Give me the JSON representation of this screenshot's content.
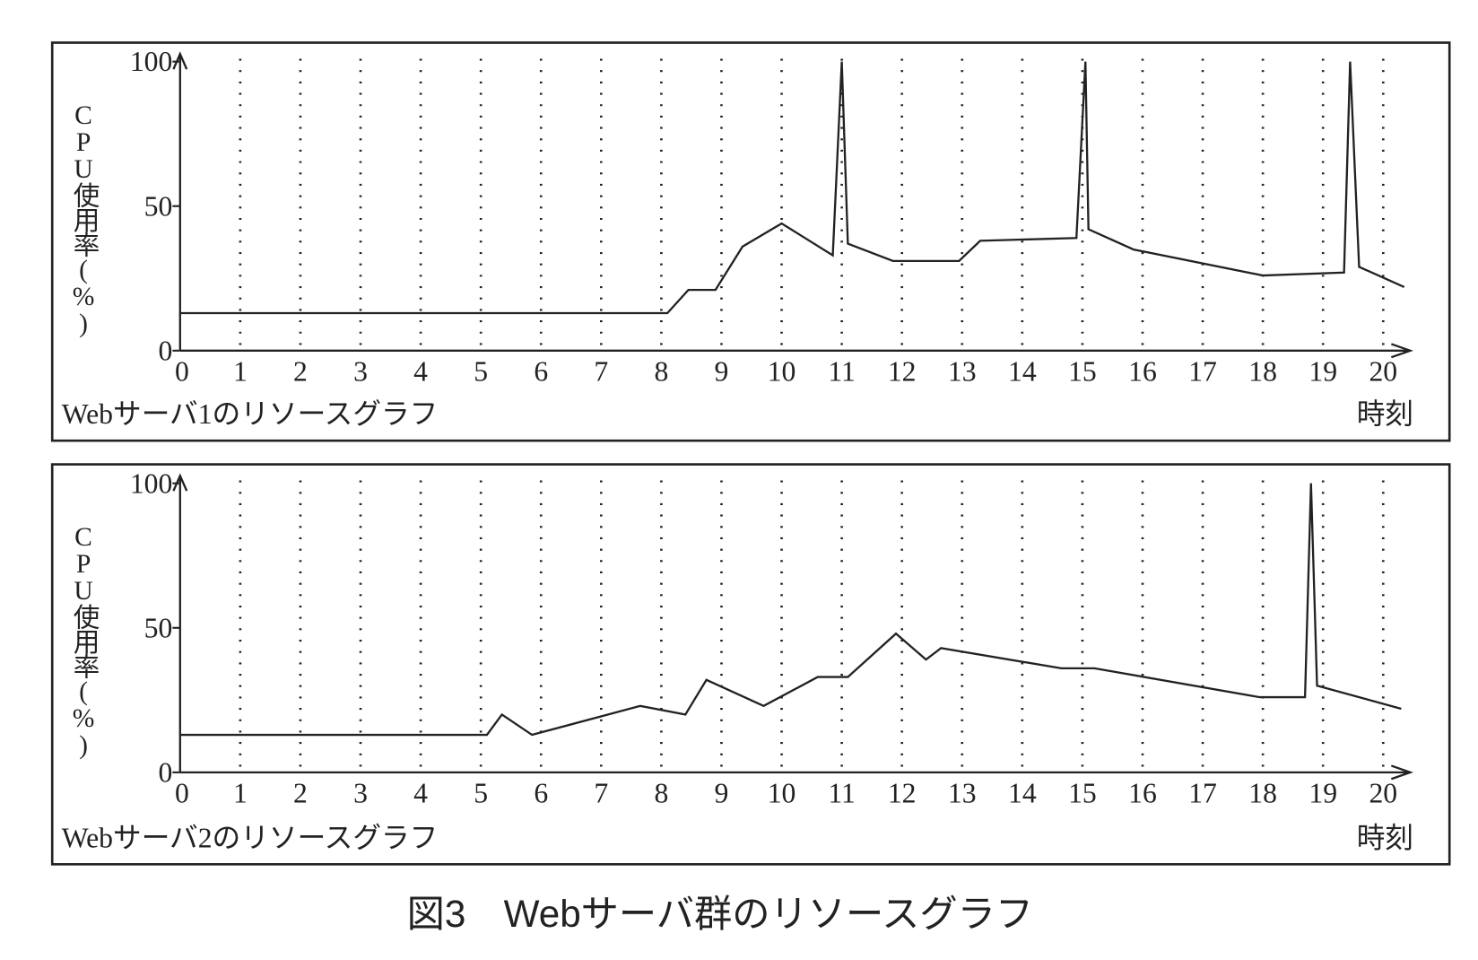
{
  "figure_caption": "図3　Webサーバ群のリソースグラフ",
  "chart_data": [
    {
      "type": "line",
      "title": "Webサーバ1のリソースグラフ",
      "y_label": "CPU使用率(%)",
      "x_label": "時刻",
      "x": [
        0,
        8.1,
        8.45,
        8.9,
        9.35,
        10.0,
        10.85,
        11.0,
        11.1,
        11.85,
        12.95,
        13.3,
        14.9,
        15.05,
        15.1,
        15.85,
        18.0,
        19.35,
        19.45,
        19.6,
        20.35
      ],
      "values": [
        13,
        13,
        21,
        21,
        36,
        44,
        33,
        100,
        37,
        31,
        31,
        38,
        39,
        100,
        42,
        35,
        26,
        27,
        100,
        29,
        22
      ],
      "color": "#222",
      "xlim": [
        0,
        20.45
      ],
      "ylim": [
        0,
        100
      ],
      "xticks": [
        0,
        1,
        2,
        3,
        4,
        5,
        6,
        7,
        8,
        9,
        10,
        11,
        12,
        13,
        14,
        15,
        16,
        17,
        18,
        19,
        20
      ],
      "yticks": [
        0,
        50,
        100
      ],
      "grid": "x-dotted"
    },
    {
      "type": "line",
      "title": "Webサーバ2のリソースグラフ",
      "y_label": "CPU使用率(%)",
      "x_label": "時刻",
      "x": [
        0,
        5.1,
        5.35,
        5.85,
        7.65,
        8.4,
        8.75,
        9.7,
        10.6,
        11.1,
        11.9,
        12.4,
        12.65,
        14.65,
        15.2,
        17.95,
        18.7,
        18.8,
        18.9,
        20.3
      ],
      "values": [
        13,
        13,
        20,
        13,
        23,
        20,
        32,
        23,
        33,
        33,
        48,
        39,
        43,
        36,
        36,
        26,
        26,
        100,
        30,
        22
      ],
      "color": "#222",
      "xlim": [
        0,
        20.45
      ],
      "ylim": [
        0,
        100
      ],
      "xticks": [
        0,
        1,
        2,
        3,
        4,
        5,
        6,
        7,
        8,
        9,
        10,
        11,
        12,
        13,
        14,
        15,
        16,
        17,
        18,
        19,
        20
      ],
      "yticks": [
        0,
        50,
        100
      ],
      "grid": "x-dotted"
    }
  ]
}
